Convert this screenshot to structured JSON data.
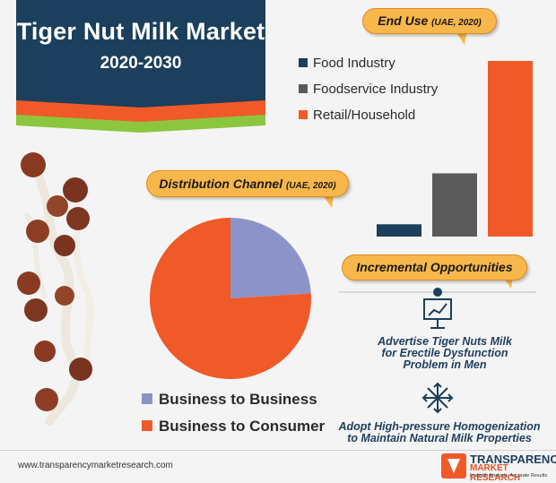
{
  "header": {
    "title": "Tiger Nut Milk Market",
    "years": "2020-2030"
  },
  "end_use": {
    "label": "End Use",
    "label_note": "(UAE, 2020)",
    "legend": [
      "Food Industry",
      "Foodservice Industry",
      "Retail/Household"
    ]
  },
  "distribution": {
    "label": "Distribution Channel",
    "label_note": "(UAE, 2020)",
    "legend": [
      "Business to Business",
      "Business to Consumer"
    ]
  },
  "opportunities": {
    "label": "Incremental Opportunities",
    "items": [
      {
        "icon": "presentation-icon",
        "text": "Advertise Tiger Nuts Milk for Erectile Dysfunction Problem in Men"
      },
      {
        "icon": "arrows-expand-icon",
        "text": "Adopt High-pressure Homogenization to Maintain Natural Milk Properties"
      }
    ]
  },
  "footer": {
    "url": "www.transparencymarketresearch.com",
    "logo_line1": "TRANSPARENCY",
    "logo_line2": "MARKET RESEARCH",
    "logo_line3": "In-depth Analysis. Accurate Results"
  },
  "colors": {
    "navy": "#1b3f5c",
    "orange": "#f05a28",
    "green": "#8cc63f",
    "gray": "#5a5a5a",
    "periwinkle": "#8b93c9",
    "pill": "#f8b74a"
  },
  "chart_data": [
    {
      "type": "bar",
      "title": "End Use (UAE, 2020)",
      "categories": [
        "Food Industry",
        "Foodservice Industry",
        "Retail/Household"
      ],
      "values": [
        7,
        36,
        100
      ],
      "ylim": [
        0,
        100
      ],
      "colors": [
        "#1b3f5c",
        "#5a5a5a",
        "#f05a28"
      ],
      "grid": false,
      "legend": "top-left"
    },
    {
      "type": "pie",
      "title": "Distribution Channel (UAE, 2020)",
      "labels": [
        "Business to Business",
        "Business to Consumer"
      ],
      "values": [
        24,
        76
      ],
      "colors": [
        "#8b93c9",
        "#f05a28"
      ],
      "legend": "bottom"
    }
  ]
}
